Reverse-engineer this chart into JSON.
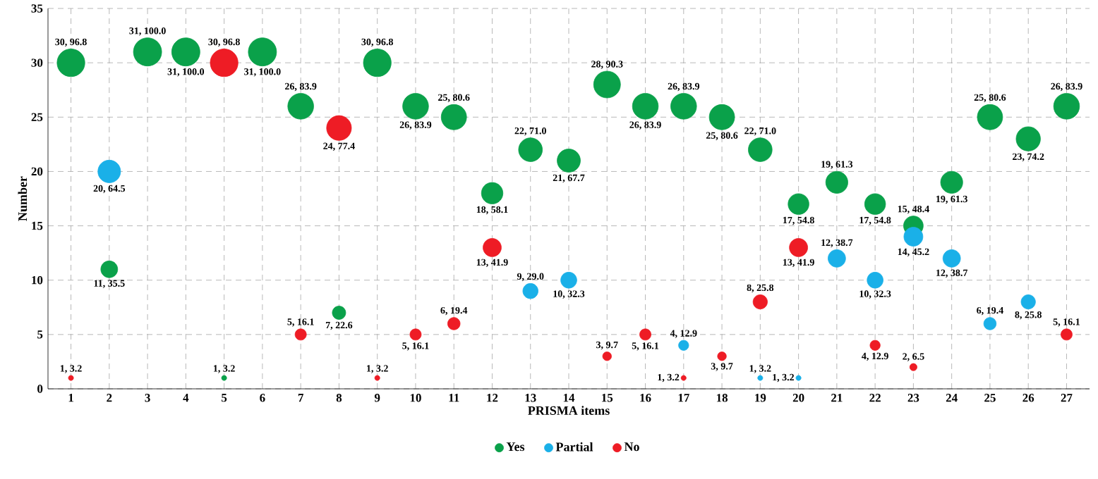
{
  "chart_data": {
    "type": "bubble",
    "xlabel": "PRISMA items",
    "ylabel": "Number",
    "categories": [
      "1",
      "2",
      "3",
      "4",
      "5",
      "6",
      "7",
      "8",
      "9",
      "10",
      "11",
      "12",
      "13",
      "14",
      "15",
      "16",
      "17",
      "18",
      "19",
      "20",
      "21",
      "22",
      "23",
      "24",
      "25",
      "26",
      "27"
    ],
    "ylim": [
      0,
      35
    ],
    "yticks": [
      0,
      5,
      10,
      15,
      20,
      25,
      30,
      35
    ],
    "grid": true,
    "legend": "bottom",
    "series": [
      {
        "name": "Yes",
        "color": "#0aa14a",
        "values": [
          30,
          11,
          31,
          31,
          1,
          31,
          26,
          7,
          30,
          26,
          25,
          18,
          22,
          21,
          28,
          26,
          26,
          25,
          22,
          17,
          19,
          17,
          15,
          19,
          25,
          23,
          26
        ],
        "sizes": [
          0.968,
          0.355,
          1.0,
          1.0,
          0.032,
          1.0,
          0.839,
          0.226,
          0.968,
          0.839,
          0.806,
          0.581,
          0.71,
          0.677,
          0.903,
          0.839,
          0.839,
          0.806,
          0.71,
          0.548,
          0.613,
          0.548,
          0.484,
          0.613,
          0.806,
          0.742,
          0.839
        ],
        "value_labels": [
          "30, 96.8",
          "11, 35.5",
          "31, 100.0",
          "31, 100.0",
          "1, 3.2",
          "31, 100.0",
          "26, 83.9",
          "7, 22.6",
          "30, 96.8",
          "26, 83.9",
          "25, 80.6",
          "18, 58.1",
          "22, 71.0",
          "21, 67.7",
          "28, 90.3",
          "26, 83.9",
          "26, 83.9",
          "25, 80.6",
          "22, 71.0",
          "17, 54.8",
          "19, 61.3",
          "17, 54.8",
          "15, 48.4",
          "19, 61.3",
          "25, 80.6",
          "23, 74.2",
          "26, 83.9"
        ]
      },
      {
        "name": "Partial",
        "color": "#1ab0e8",
        "values": [
          null,
          20,
          null,
          null,
          null,
          null,
          null,
          null,
          null,
          null,
          null,
          null,
          9,
          10,
          null,
          null,
          4,
          null,
          1,
          1,
          12,
          10,
          14,
          12,
          6,
          8,
          null
        ],
        "sizes": [
          null,
          0.645,
          null,
          null,
          null,
          null,
          null,
          null,
          null,
          null,
          null,
          null,
          0.29,
          0.323,
          null,
          null,
          0.129,
          null,
          0.032,
          0.032,
          0.387,
          0.323,
          0.452,
          0.387,
          0.194,
          0.258,
          null
        ],
        "value_labels": [
          null,
          "20, 64.5",
          null,
          null,
          null,
          null,
          null,
          null,
          null,
          null,
          null,
          null,
          "9, 29.0",
          "10, 32.3",
          null,
          null,
          "4, 12.9",
          null,
          "1, 3.2",
          "1, 3.2",
          "12, 38.7",
          "10, 32.3",
          "14, 45.2",
          "12, 38.7",
          "6, 19.4",
          "8, 25.8",
          null
        ]
      },
      {
        "name": "No",
        "color": "#ee1c25",
        "values": [
          1,
          null,
          null,
          null,
          30,
          null,
          5,
          24,
          1,
          5,
          6,
          13,
          null,
          null,
          3,
          5,
          1,
          3,
          8,
          13,
          null,
          4,
          2,
          null,
          null,
          null,
          5
        ],
        "sizes": [
          0.032,
          null,
          null,
          null,
          0.968,
          null,
          0.161,
          0.774,
          0.032,
          0.161,
          0.194,
          0.419,
          null,
          null,
          0.097,
          0.161,
          0.032,
          0.097,
          0.258,
          0.419,
          null,
          0.129,
          0.065,
          null,
          null,
          null,
          0.161
        ],
        "value_labels": [
          "1, 3.2",
          null,
          null,
          null,
          "30, 96.8",
          null,
          "5, 16.1",
          "24, 77.4",
          "1, 3.2",
          "5, 16.1",
          "6, 19.4",
          "13, 41.9",
          null,
          null,
          "3, 9.7",
          "5, 16.1",
          "1, 3.2",
          "3, 9.7",
          "8, 25.8",
          "13, 41.9",
          null,
          "4, 12.9",
          "2, 6.5",
          null,
          null,
          null,
          "5, 16.1"
        ]
      }
    ]
  }
}
